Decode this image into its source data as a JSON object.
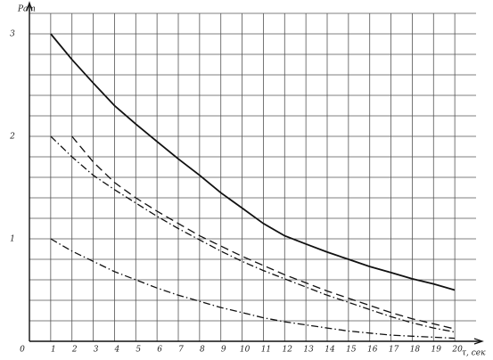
{
  "chart_data": {
    "type": "line",
    "ylabel": "Pат",
    "xlabel": "τ, сек",
    "xlim": [
      0,
      21
    ],
    "ylim": [
      0,
      3.2
    ],
    "xticks": [
      0,
      1,
      2,
      3,
      4,
      5,
      6,
      7,
      8,
      9,
      10,
      11,
      12,
      13,
      14,
      15,
      16,
      17,
      18,
      19,
      20
    ],
    "yticks": [
      1,
      2,
      3
    ],
    "yminor": [
      0.2,
      0.4,
      0.6,
      0.8,
      1.2,
      1.4,
      1.6,
      1.8,
      2.2,
      2.4,
      2.6,
      2.8,
      3.2
    ],
    "grid": true,
    "series": [
      {
        "color": "#111",
        "dash": "solid",
        "x": [
          1,
          2,
          3,
          4,
          5,
          6,
          7,
          8,
          9,
          10,
          11,
          12,
          13,
          14,
          15,
          16,
          17,
          18,
          19,
          20
        ],
        "values": [
          3.0,
          2.75,
          2.52,
          2.3,
          2.12,
          1.95,
          1.78,
          1.62,
          1.45,
          1.3,
          1.15,
          1.03,
          0.95,
          0.87,
          0.8,
          0.73,
          0.67,
          0.61,
          0.56,
          0.5
        ]
      },
      {
        "color": "#111",
        "dash": "dashed",
        "x": [
          2,
          3,
          4,
          5,
          6,
          7,
          8,
          9,
          10,
          11,
          12,
          13,
          14,
          15,
          16,
          17,
          18,
          19,
          20
        ],
        "values": [
          2.0,
          1.75,
          1.55,
          1.4,
          1.27,
          1.15,
          1.03,
          0.93,
          0.83,
          0.74,
          0.65,
          0.57,
          0.49,
          0.42,
          0.35,
          0.28,
          0.22,
          0.17,
          0.12
        ]
      },
      {
        "color": "#111",
        "dash": "dashdot",
        "x": [
          1,
          2,
          3,
          4,
          5,
          6,
          7,
          8,
          9,
          10,
          11,
          12,
          13,
          14,
          15,
          16,
          17,
          18,
          19,
          20
        ],
        "values": [
          2.0,
          1.8,
          1.62,
          1.48,
          1.35,
          1.22,
          1.1,
          0.99,
          0.88,
          0.78,
          0.69,
          0.61,
          0.53,
          0.45,
          0.38,
          0.31,
          0.24,
          0.18,
          0.13,
          0.09
        ]
      },
      {
        "color": "#111",
        "dash": "dashdot",
        "x": [
          1,
          2,
          3,
          4,
          5,
          6,
          7,
          8,
          9,
          10,
          11,
          12,
          13,
          14,
          15,
          16,
          17,
          18,
          19,
          20
        ],
        "values": [
          1.0,
          0.88,
          0.78,
          0.68,
          0.6,
          0.52,
          0.45,
          0.39,
          0.33,
          0.28,
          0.23,
          0.19,
          0.16,
          0.13,
          0.1,
          0.08,
          0.06,
          0.05,
          0.04,
          0.03
        ]
      }
    ]
  }
}
